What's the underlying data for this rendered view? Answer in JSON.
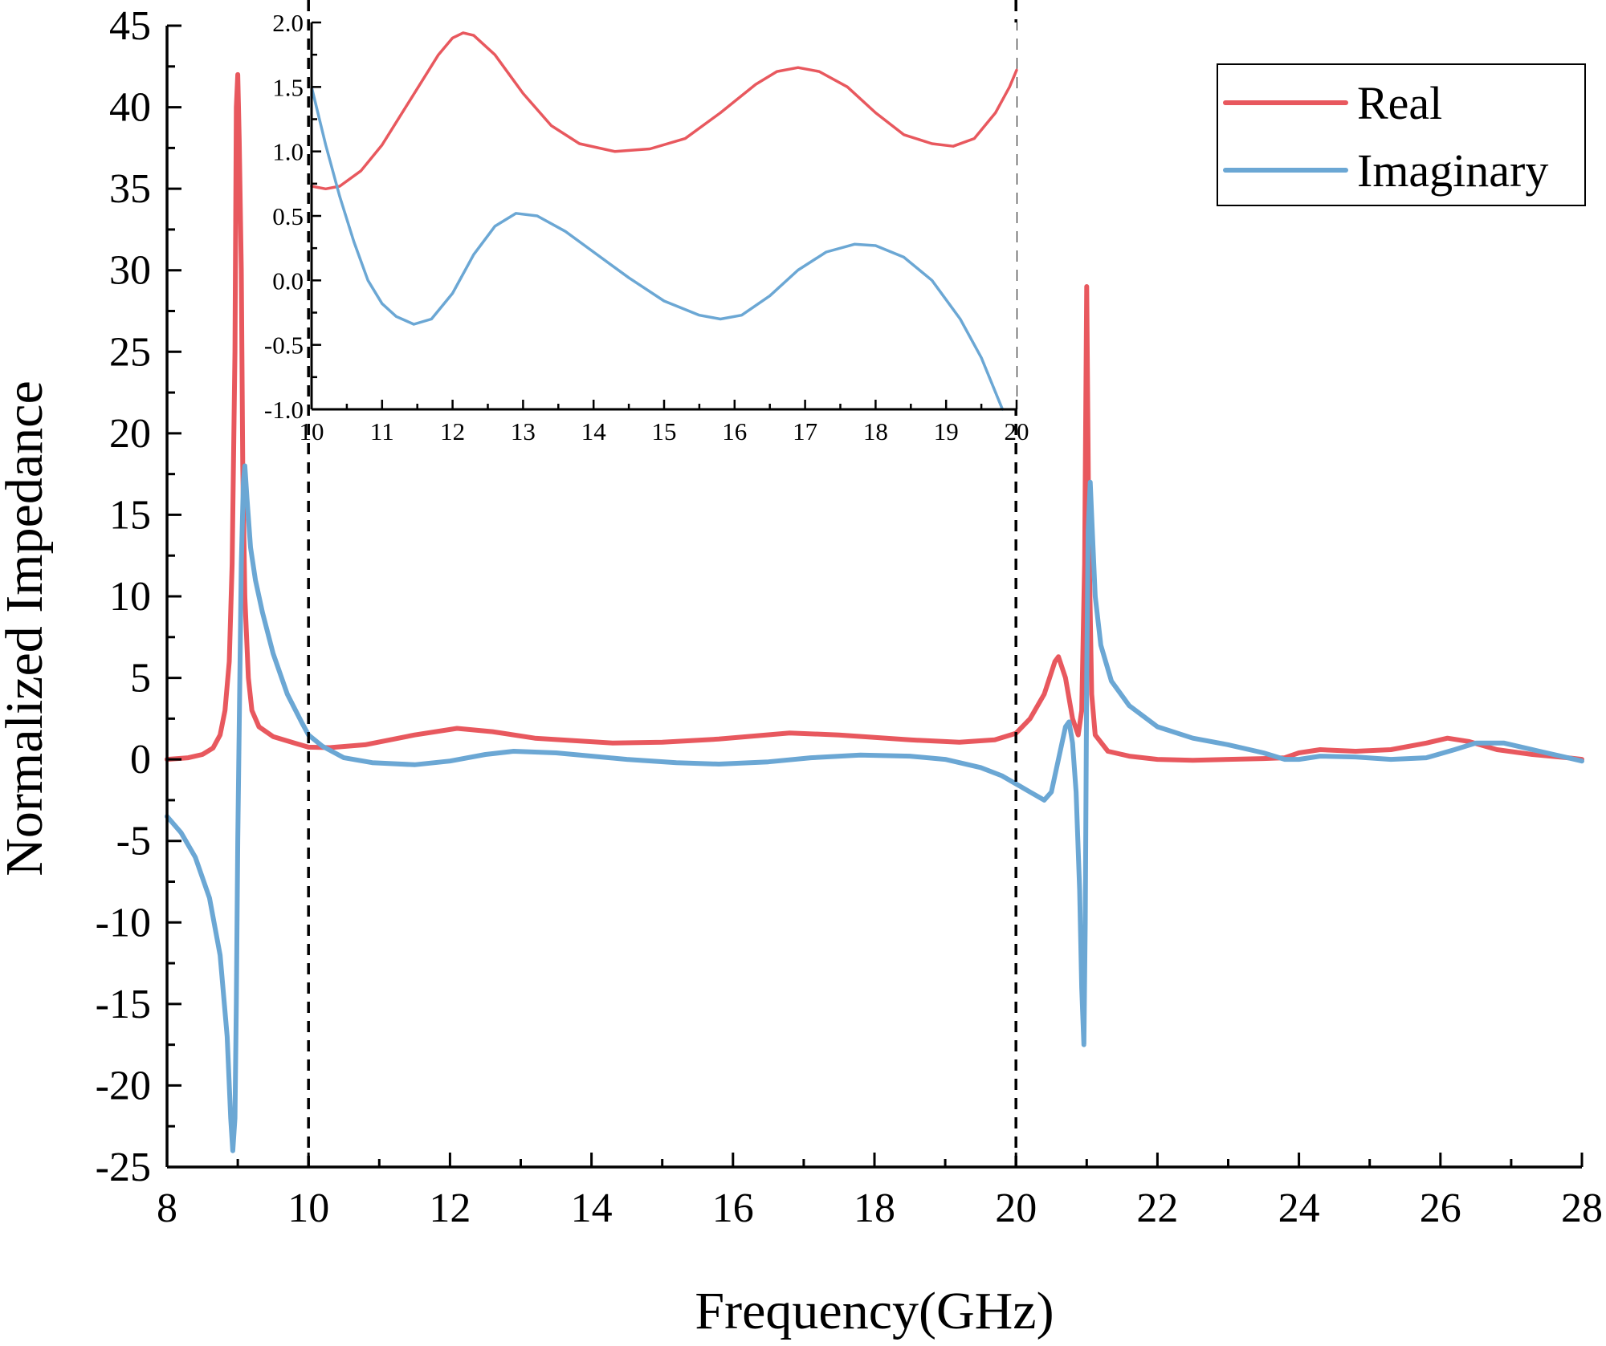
{
  "chart_data": [
    {
      "id": "main",
      "type": "line",
      "title": "",
      "xlabel": "Frequency(GHz)",
      "ylabel": "Normalized Impedance",
      "xlim": [
        8,
        28
      ],
      "ylim": [
        -25,
        45
      ],
      "xticks": [
        8,
        10,
        12,
        14,
        16,
        18,
        20,
        22,
        24,
        26,
        28
      ],
      "yticks": [
        -25,
        -20,
        -15,
        -10,
        -5,
        0,
        5,
        10,
        15,
        20,
        25,
        30,
        35,
        40,
        45
      ],
      "xtick_labels": [
        "8",
        "10",
        "12",
        "14",
        "16",
        "18",
        "20",
        "22",
        "24",
        "26",
        "28"
      ],
      "ytick_labels": [
        "-25",
        "-20",
        "-15",
        "-10",
        "-5",
        "0",
        "5",
        "10",
        "15",
        "20",
        "25",
        "30",
        "35",
        "40",
        "45"
      ],
      "grid": false,
      "legend": {
        "position": "top-right",
        "entries": [
          "Real",
          "Imaginary"
        ]
      },
      "annotations": {
        "dashed_vertical_lines_x": [
          10,
          20
        ]
      },
      "series": [
        {
          "name": "Real",
          "color": "#e8585e",
          "points": [
            [
              8.0,
              0.0
            ],
            [
              8.3,
              0.1
            ],
            [
              8.5,
              0.3
            ],
            [
              8.65,
              0.7
            ],
            [
              8.75,
              1.5
            ],
            [
              8.82,
              3.0
            ],
            [
              8.88,
              6.0
            ],
            [
              8.92,
              12.0
            ],
            [
              8.96,
              25.0
            ],
            [
              8.98,
              40.0
            ],
            [
              9.0,
              42.0
            ],
            [
              9.02,
              38.0
            ],
            [
              9.05,
              30.0
            ],
            [
              9.07,
              18.0
            ],
            [
              9.1,
              10.0
            ],
            [
              9.15,
              5.0
            ],
            [
              9.2,
              3.0
            ],
            [
              9.3,
              2.0
            ],
            [
              9.5,
              1.4
            ],
            [
              9.8,
              1.0
            ],
            [
              10.0,
              0.75
            ],
            [
              10.3,
              0.72
            ],
            [
              10.8,
              0.9
            ],
            [
              11.5,
              1.5
            ],
            [
              12.1,
              1.9
            ],
            [
              12.6,
              1.7
            ],
            [
              13.2,
              1.3
            ],
            [
              14.3,
              1.0
            ],
            [
              15.0,
              1.05
            ],
            [
              15.8,
              1.25
            ],
            [
              16.8,
              1.62
            ],
            [
              17.5,
              1.5
            ],
            [
              18.5,
              1.2
            ],
            [
              19.2,
              1.05
            ],
            [
              19.7,
              1.2
            ],
            [
              20.0,
              1.6
            ],
            [
              20.2,
              2.5
            ],
            [
              20.4,
              4.0
            ],
            [
              20.55,
              6.0
            ],
            [
              20.6,
              6.3
            ],
            [
              20.7,
              5.0
            ],
            [
              20.8,
              2.5
            ],
            [
              20.88,
              1.5
            ],
            [
              20.93,
              3.0
            ],
            [
              20.97,
              12.0
            ],
            [
              21.0,
              29.0
            ],
            [
              21.03,
              14.0
            ],
            [
              21.07,
              4.0
            ],
            [
              21.12,
              1.5
            ],
            [
              21.3,
              0.5
            ],
            [
              21.6,
              0.2
            ],
            [
              22.0,
              0.0
            ],
            [
              22.5,
              -0.05
            ],
            [
              23.0,
              0.0
            ],
            [
              23.5,
              0.05
            ],
            [
              23.8,
              0.1
            ],
            [
              24.0,
              0.4
            ],
            [
              24.3,
              0.6
            ],
            [
              24.8,
              0.5
            ],
            [
              25.3,
              0.6
            ],
            [
              25.8,
              1.0
            ],
            [
              26.1,
              1.3
            ],
            [
              26.4,
              1.1
            ],
            [
              26.8,
              0.6
            ],
            [
              27.3,
              0.3
            ],
            [
              27.8,
              0.1
            ],
            [
              28.0,
              0.0
            ]
          ]
        },
        {
          "name": "Imaginary",
          "color": "#6ba7d4",
          "points": [
            [
              8.0,
              -3.5
            ],
            [
              8.2,
              -4.5
            ],
            [
              8.4,
              -6.0
            ],
            [
              8.6,
              -8.5
            ],
            [
              8.75,
              -12.0
            ],
            [
              8.85,
              -17.0
            ],
            [
              8.9,
              -22.0
            ],
            [
              8.93,
              -24.0
            ],
            [
              8.96,
              -22.0
            ],
            [
              8.98,
              -15.0
            ],
            [
              9.0,
              -5.0
            ],
            [
              9.02,
              2.0
            ],
            [
              9.05,
              12.0
            ],
            [
              9.08,
              17.0
            ],
            [
              9.1,
              18.0
            ],
            [
              9.13,
              16.0
            ],
            [
              9.18,
              13.0
            ],
            [
              9.25,
              11.0
            ],
            [
              9.35,
              9.0
            ],
            [
              9.5,
              6.5
            ],
            [
              9.7,
              4.0
            ],
            [
              9.9,
              2.3
            ],
            [
              10.0,
              1.5
            ],
            [
              10.2,
              0.8
            ],
            [
              10.5,
              0.1
            ],
            [
              10.9,
              -0.2
            ],
            [
              11.5,
              -0.33
            ],
            [
              12.0,
              -0.1
            ],
            [
              12.5,
              0.3
            ],
            [
              12.9,
              0.5
            ],
            [
              13.5,
              0.4
            ],
            [
              14.5,
              0.0
            ],
            [
              15.2,
              -0.2
            ],
            [
              15.8,
              -0.29
            ],
            [
              16.5,
              -0.15
            ],
            [
              17.1,
              0.1
            ],
            [
              17.8,
              0.27
            ],
            [
              18.5,
              0.2
            ],
            [
              19.0,
              0.0
            ],
            [
              19.5,
              -0.5
            ],
            [
              19.8,
              -1.0
            ],
            [
              20.0,
              -1.5
            ],
            [
              20.2,
              -2.0
            ],
            [
              20.4,
              -2.5
            ],
            [
              20.5,
              -2.0
            ],
            [
              20.6,
              0.0
            ],
            [
              20.7,
              2.0
            ],
            [
              20.75,
              2.3
            ],
            [
              20.8,
              1.0
            ],
            [
              20.85,
              -2.0
            ],
            [
              20.9,
              -8.0
            ],
            [
              20.93,
              -14.0
            ],
            [
              20.96,
              -17.5
            ],
            [
              20.98,
              -10.0
            ],
            [
              21.0,
              5.0
            ],
            [
              21.02,
              14.0
            ],
            [
              21.05,
              17.0
            ],
            [
              21.08,
              14.0
            ],
            [
              21.12,
              10.0
            ],
            [
              21.2,
              7.0
            ],
            [
              21.35,
              4.8
            ],
            [
              21.6,
              3.3
            ],
            [
              22.0,
              2.0
            ],
            [
              22.5,
              1.3
            ],
            [
              23.0,
              0.9
            ],
            [
              23.5,
              0.4
            ],
            [
              23.8,
              0.0
            ],
            [
              24.0,
              0.0
            ],
            [
              24.3,
              0.2
            ],
            [
              24.8,
              0.15
            ],
            [
              25.3,
              0.0
            ],
            [
              25.8,
              0.1
            ],
            [
              26.2,
              0.6
            ],
            [
              26.5,
              1.0
            ],
            [
              26.9,
              1.0
            ],
            [
              27.4,
              0.5
            ],
            [
              27.8,
              0.1
            ],
            [
              28.0,
              -0.1
            ]
          ]
        }
      ]
    },
    {
      "id": "inset",
      "type": "line",
      "title": "",
      "xlabel": "",
      "ylabel": "",
      "xlim": [
        10,
        20
      ],
      "ylim": [
        -1.0,
        2.0
      ],
      "xticks": [
        10,
        11,
        12,
        13,
        14,
        15,
        16,
        17,
        18,
        19,
        20
      ],
      "yticks": [
        -1.0,
        -0.5,
        0.0,
        0.5,
        1.0,
        1.5,
        2.0
      ],
      "xtick_labels": [
        "10",
        "11",
        "12",
        "13",
        "14",
        "15",
        "16",
        "17",
        "18",
        "19",
        "20"
      ],
      "ytick_labels": [
        "-1.0",
        "-0.5",
        "0.0",
        "0.5",
        "1.0",
        "1.5",
        "2.0"
      ],
      "grid": false,
      "series": [
        {
          "name": "Real",
          "color": "#e8585e",
          "points": [
            [
              10.0,
              0.73
            ],
            [
              10.2,
              0.71
            ],
            [
              10.4,
              0.73
            ],
            [
              10.7,
              0.85
            ],
            [
              11.0,
              1.05
            ],
            [
              11.4,
              1.4
            ],
            [
              11.8,
              1.75
            ],
            [
              12.0,
              1.88
            ],
            [
              12.15,
              1.92
            ],
            [
              12.3,
              1.9
            ],
            [
              12.6,
              1.75
            ],
            [
              13.0,
              1.45
            ],
            [
              13.4,
              1.2
            ],
            [
              13.8,
              1.06
            ],
            [
              14.3,
              1.0
            ],
            [
              14.8,
              1.02
            ],
            [
              15.3,
              1.1
            ],
            [
              15.8,
              1.3
            ],
            [
              16.3,
              1.52
            ],
            [
              16.6,
              1.62
            ],
            [
              16.9,
              1.65
            ],
            [
              17.2,
              1.62
            ],
            [
              17.6,
              1.5
            ],
            [
              18.0,
              1.3
            ],
            [
              18.4,
              1.13
            ],
            [
              18.8,
              1.06
            ],
            [
              19.1,
              1.04
            ],
            [
              19.4,
              1.1
            ],
            [
              19.7,
              1.3
            ],
            [
              19.9,
              1.5
            ],
            [
              20.0,
              1.63
            ]
          ]
        },
        {
          "name": "Imaginary",
          "color": "#6ba7d4",
          "points": [
            [
              10.0,
              1.5
            ],
            [
              10.2,
              1.05
            ],
            [
              10.4,
              0.65
            ],
            [
              10.6,
              0.3
            ],
            [
              10.8,
              0.0
            ],
            [
              11.0,
              -0.18
            ],
            [
              11.2,
              -0.28
            ],
            [
              11.45,
              -0.34
            ],
            [
              11.7,
              -0.3
            ],
            [
              12.0,
              -0.1
            ],
            [
              12.3,
              0.2
            ],
            [
              12.6,
              0.42
            ],
            [
              12.9,
              0.52
            ],
            [
              13.2,
              0.5
            ],
            [
              13.6,
              0.38
            ],
            [
              14.0,
              0.22
            ],
            [
              14.5,
              0.02
            ],
            [
              15.0,
              -0.16
            ],
            [
              15.5,
              -0.27
            ],
            [
              15.8,
              -0.3
            ],
            [
              16.1,
              -0.27
            ],
            [
              16.5,
              -0.12
            ],
            [
              16.9,
              0.08
            ],
            [
              17.3,
              0.22
            ],
            [
              17.7,
              0.28
            ],
            [
              18.0,
              0.27
            ],
            [
              18.4,
              0.18
            ],
            [
              18.8,
              0.0
            ],
            [
              19.2,
              -0.3
            ],
            [
              19.5,
              -0.6
            ],
            [
              19.8,
              -1.0
            ]
          ]
        }
      ]
    }
  ]
}
